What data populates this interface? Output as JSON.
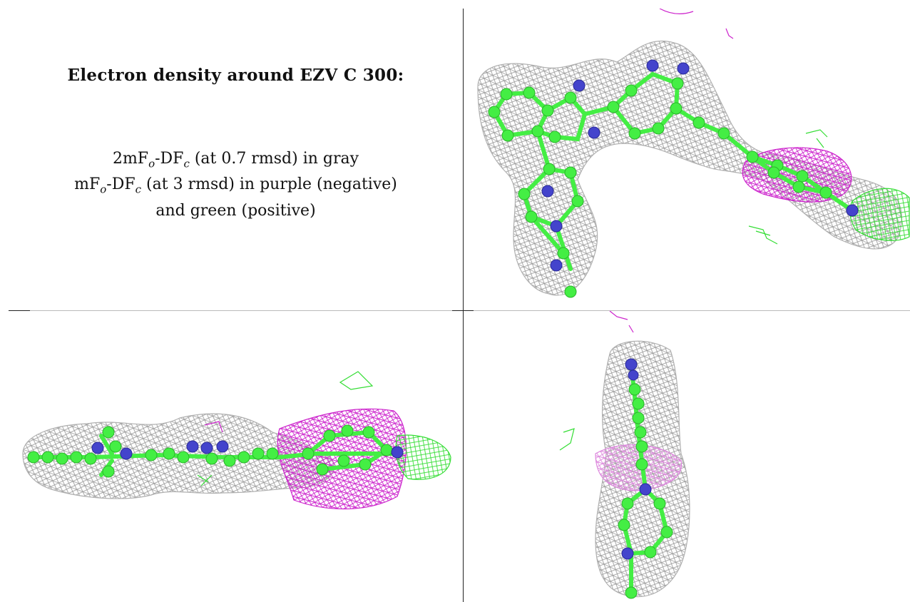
{
  "legend": {
    "title": "Electron density around EZV C 300:",
    "line1": {
      "prefix": "2mF",
      "sub1": "o",
      "mid": "-DF",
      "sub2": "c",
      "suffix": " (at 0.7 rmsd) in gray"
    },
    "line2": {
      "prefix": "mF",
      "sub1": "o",
      "mid": "-DF",
      "sub2": "c",
      "suffix": " (at 3 rmsd) in purple (negative)"
    },
    "line3": "and green (positive)"
  },
  "colors": {
    "mesh_gray": "#9a9a9a",
    "mesh_purple": "#cc22cc",
    "mesh_green": "#33dd33",
    "carbon": "#44ee44",
    "nitrogen": "#4444cc",
    "grid_line": "#222222"
  },
  "icons": [
    "electron-density-view-top",
    "electron-density-view-side",
    "electron-density-view-end"
  ]
}
